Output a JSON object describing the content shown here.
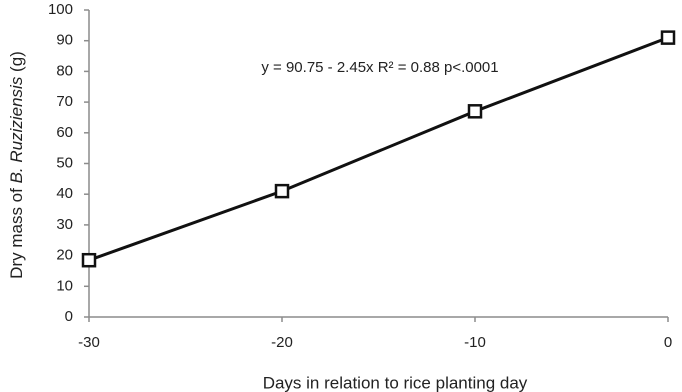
{
  "chart_data": {
    "type": "line",
    "ylabel": [
      "Dry mass of ",
      "B. Ruziziensis",
      " (g)"
    ],
    "xlabel": "Days in relation to rice planting day",
    "annotation": "y = 90.75  - 2.45x R² = 0.88 p<.0001",
    "x": [
      -30,
      -20,
      -10,
      0
    ],
    "values": [
      18.5,
      41,
      67,
      91
    ],
    "color": "#111111",
    "xlim": [
      -30,
      0
    ],
    "xticks": [
      -30,
      -20,
      -10,
      0
    ],
    "ylim": [
      0,
      100
    ],
    "yticks": [
      0,
      10,
      20,
      30,
      40,
      50,
      60,
      70,
      80,
      90,
      100
    ],
    "grid": false
  }
}
